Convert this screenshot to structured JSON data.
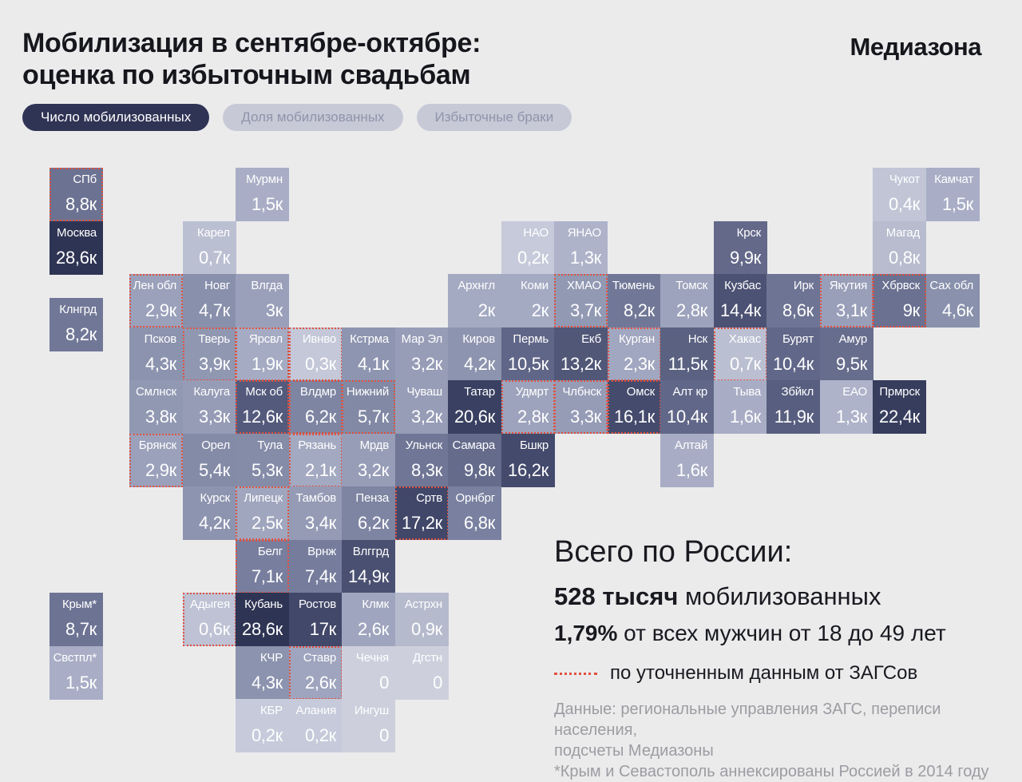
{
  "header": {
    "title_line1": "Мобилизация в сентябре-октябре:",
    "title_line2": "оценка по избыточным свадьбам",
    "logo": "Медиазона"
  },
  "tabs": [
    {
      "label": "Число мобилизованных",
      "active": true
    },
    {
      "label": "Доля мобилизованных",
      "active": false
    },
    {
      "label": "Избыточные браки",
      "active": false
    }
  ],
  "colors": {
    "background": "#ebebec",
    "accent_red_dashed": "#e1513f",
    "active_tab_bg": "#2f3354",
    "inactive_tab_bg": "#c7c9d7",
    "inactive_tab_text": "#9094a9",
    "tile_text": "#ffffff",
    "scale_min": "#cdd0dc",
    "scale_max": "#2e3453",
    "footnote_text": "#9c9ca2"
  },
  "summary": {
    "heading": "Всего по России:",
    "total_bold": "528 тысяч",
    "total_rest": " мобилизованных",
    "percent_bold": "1,79%",
    "percent_rest": " от всех мужчин от 18 до 49 лет",
    "legend_refined": "по уточненным данным от ЗАГСов",
    "footnote1": "Данные: региональные управления ЗАГС, переписи населения,",
    "footnote2": "подсчеты Медиазоны",
    "footnote3": "*Крым и Севастополь аннексированы Россией в 2014 году"
  },
  "chart_data": {
    "type": "heatmap",
    "subtype": "tile-cartogram",
    "title": "Мобилизация в сентябре-октябре: оценка по избыточным свадьбам",
    "unit_suffix": "к",
    "legend": [
      {
        "style": "red-dashed-border",
        "label": "по уточненным данным от ЗАГСов"
      }
    ],
    "totals": {
      "label": "Всего по России:",
      "mobilized": "528 тысяч мобилизованных",
      "share": "1,79% от всех мужчин от 18 до 49 лет"
    },
    "regions": [
      {
        "name": "СПб",
        "value": "8,8к",
        "k": 8.8,
        "col": -1.5,
        "row": 0,
        "color": "#6c7292",
        "refined": true
      },
      {
        "name": "Москва",
        "value": "28,6к",
        "k": 28.6,
        "col": -1.5,
        "row": 1,
        "color": "#2e3453",
        "refined": false
      },
      {
        "name": "Клнгрд",
        "value": "8,2к",
        "k": 8.2,
        "col": -1.5,
        "row": 2.45,
        "color": "#717897",
        "refined": false
      },
      {
        "name": "Крым*",
        "value": "8,7к",
        "k": 8.7,
        "col": -1.5,
        "row": 8,
        "color": "#6d7393",
        "refined": false
      },
      {
        "name": "Свстпл*",
        "value": "1,5к",
        "k": 1.5,
        "col": -1.5,
        "row": 9,
        "color": "#a9aec6",
        "refined": false
      },
      {
        "name": "Мурмн",
        "value": "1,5к",
        "k": 1.5,
        "col": 2,
        "row": 0,
        "color": "#a9aec6",
        "refined": false
      },
      {
        "name": "Чукот",
        "value": "0,4к",
        "k": 0.4,
        "col": 14,
        "row": 0,
        "color": "#c1c5d6",
        "refined": false
      },
      {
        "name": "Камчат",
        "value": "1,5к",
        "k": 1.5,
        "col": 15,
        "row": 0,
        "color": "#a9aec6",
        "refined": false
      },
      {
        "name": "Карел",
        "value": "0,7к",
        "k": 0.7,
        "col": 1,
        "row": 1,
        "color": "#bbbfd2",
        "refined": false
      },
      {
        "name": "НАО",
        "value": "0,2к",
        "k": 0.2,
        "col": 7,
        "row": 1,
        "color": "#c6cada",
        "refined": false
      },
      {
        "name": "ЯНАО",
        "value": "1,3к",
        "k": 1.3,
        "col": 8,
        "row": 1,
        "color": "#aeb3ca",
        "refined": false
      },
      {
        "name": "Крск",
        "value": "9,9к",
        "k": 9.9,
        "col": 11,
        "row": 1,
        "color": "#64698a",
        "refined": false
      },
      {
        "name": "Магад",
        "value": "0,8к",
        "k": 0.8,
        "col": 14,
        "row": 1,
        "color": "#b8bcce",
        "refined": false
      },
      {
        "name": "Лен обл",
        "value": "2,9к",
        "k": 2.9,
        "col": 0,
        "row": 2,
        "color": "#9ba1bb",
        "refined": true
      },
      {
        "name": "Новг",
        "value": "4,7к",
        "k": 4.7,
        "col": 1,
        "row": 2,
        "color": "#8890ab",
        "refined": false
      },
      {
        "name": "Влгда",
        "value": "3к",
        "k": 3,
        "col": 2,
        "row": 2,
        "color": "#9aa0ba",
        "refined": false
      },
      {
        "name": "Архнгл",
        "value": "2к",
        "k": 2,
        "col": 6,
        "row": 2,
        "color": "#a4aac2",
        "refined": false
      },
      {
        "name": "Коми",
        "value": "2к",
        "k": 2,
        "col": 7,
        "row": 2,
        "color": "#a4aac2",
        "refined": false
      },
      {
        "name": "ХМАО",
        "value": "3,7к",
        "k": 3.7,
        "col": 8,
        "row": 2,
        "color": "#9299b3",
        "refined": true
      },
      {
        "name": "Тюмень",
        "value": "8,2к",
        "k": 8.2,
        "col": 9,
        "row": 2,
        "color": "#717897",
        "refined": false
      },
      {
        "name": "Томск",
        "value": "2,8к",
        "k": 2.8,
        "col": 10,
        "row": 2,
        "color": "#9da3bc",
        "refined": false
      },
      {
        "name": "Кузбас",
        "value": "14,4к",
        "k": 14.4,
        "col": 11,
        "row": 2,
        "color": "#4c5273",
        "refined": false
      },
      {
        "name": "Ирк",
        "value": "8,6к",
        "k": 8.6,
        "col": 12,
        "row": 2,
        "color": "#6e7494",
        "refined": false
      },
      {
        "name": "Якутия",
        "value": "3,1к",
        "k": 3.1,
        "col": 13,
        "row": 2,
        "color": "#999fb9",
        "refined": true
      },
      {
        "name": "Хбрвск",
        "value": "9к",
        "k": 9,
        "col": 14,
        "row": 2,
        "color": "#6a7191",
        "refined": true
      },
      {
        "name": "Сах обл",
        "value": "4,6к",
        "k": 4.6,
        "col": 15,
        "row": 2,
        "color": "#8991ac",
        "refined": false
      },
      {
        "name": "Псков",
        "value": "4,3к",
        "k": 4.3,
        "col": 0,
        "row": 3,
        "color": "#8c93ae",
        "refined": false
      },
      {
        "name": "Тверь",
        "value": "3,9к",
        "k": 3.9,
        "col": 1,
        "row": 3,
        "color": "#9097b1",
        "refined": true
      },
      {
        "name": "Ярсвл",
        "value": "1,9к",
        "k": 1.9,
        "col": 2,
        "row": 3,
        "color": "#a5abc3",
        "refined": true
      },
      {
        "name": "Ивнво",
        "value": "0,3к",
        "k": 0.3,
        "col": 3,
        "row": 3,
        "color": "#c4c8d8",
        "refined": true
      },
      {
        "name": "Кстрма",
        "value": "4,1к",
        "k": 4.1,
        "col": 4,
        "row": 3,
        "color": "#8e95b0",
        "refined": false
      },
      {
        "name": "Мар Эл",
        "value": "3,2к",
        "k": 3.2,
        "col": 5,
        "row": 3,
        "color": "#979db7",
        "refined": false
      },
      {
        "name": "Киров",
        "value": "4,2к",
        "k": 4.2,
        "col": 6,
        "row": 3,
        "color": "#8d94af",
        "refined": false
      },
      {
        "name": "Пермь",
        "value": "10,5к",
        "k": 10.5,
        "col": 7,
        "row": 3,
        "color": "#606687",
        "refined": false
      },
      {
        "name": "Екб",
        "value": "13,2к",
        "k": 13.2,
        "col": 8,
        "row": 3,
        "color": "#515777",
        "refined": false
      },
      {
        "name": "Курган",
        "value": "2,3к",
        "k": 2.3,
        "col": 9,
        "row": 3,
        "color": "#a1a7c0",
        "refined": true
      },
      {
        "name": "Нск",
        "value": "11,5к",
        "k": 11.5,
        "col": 10,
        "row": 3,
        "color": "#5a6181",
        "refined": false
      },
      {
        "name": "Хакас",
        "value": "0,7к",
        "k": 0.7,
        "col": 11,
        "row": 3,
        "color": "#bbbfd2",
        "refined": true
      },
      {
        "name": "Бурят",
        "value": "10,4к",
        "k": 10.4,
        "col": 12,
        "row": 3,
        "color": "#616788",
        "refined": false
      },
      {
        "name": "Амур",
        "value": "9,5к",
        "k": 9.5,
        "col": 13,
        "row": 3,
        "color": "#676d8d",
        "refined": false
      },
      {
        "name": "Смлнск",
        "value": "3,8к",
        "k": 3.8,
        "col": 0,
        "row": 4,
        "color": "#9198b2",
        "refined": false
      },
      {
        "name": "Калуга",
        "value": "3,3к",
        "k": 3.3,
        "col": 1,
        "row": 4,
        "color": "#969cb6",
        "refined": false
      },
      {
        "name": "Мск об",
        "value": "12,6к",
        "k": 12.6,
        "col": 2,
        "row": 4,
        "color": "#545a7c",
        "refined": true
      },
      {
        "name": "Влдмр",
        "value": "6,2к",
        "k": 6.2,
        "col": 3,
        "row": 4,
        "color": "#7e85a2",
        "refined": true
      },
      {
        "name": "Нижний",
        "value": "5,7к",
        "k": 5.7,
        "col": 4,
        "row": 4,
        "color": "#8289a5",
        "refined": true
      },
      {
        "name": "Чуваш",
        "value": "3,2к",
        "k": 3.2,
        "col": 5,
        "row": 4,
        "color": "#979db7",
        "refined": false
      },
      {
        "name": "Татар",
        "value": "20,6к",
        "k": 20.6,
        "col": 6,
        "row": 4,
        "color": "#3a4061",
        "refined": false
      },
      {
        "name": "Удмрт",
        "value": "2,8к",
        "k": 2.8,
        "col": 7,
        "row": 4,
        "color": "#9da3bc",
        "refined": true
      },
      {
        "name": "Члбнск",
        "value": "3,3к",
        "k": 3.3,
        "col": 8,
        "row": 4,
        "color": "#969cb6",
        "refined": true
      },
      {
        "name": "Омск",
        "value": "16,1к",
        "k": 16.1,
        "col": 9,
        "row": 4,
        "color": "#454b6d",
        "refined": true
      },
      {
        "name": "Алт кр",
        "value": "10,4к",
        "k": 10.4,
        "col": 10,
        "row": 4,
        "color": "#616788",
        "refined": false
      },
      {
        "name": "Тыва",
        "value": "1,6к",
        "k": 1.6,
        "col": 11,
        "row": 4,
        "color": "#a8adc5",
        "refined": false
      },
      {
        "name": "Збйкл",
        "value": "11,9к",
        "k": 11.9,
        "col": 12,
        "row": 4,
        "color": "#585e7f",
        "refined": false
      },
      {
        "name": "ЕАО",
        "value": "1,3к",
        "k": 1.3,
        "col": 13,
        "row": 4,
        "color": "#aeb3ca",
        "refined": false
      },
      {
        "name": "Прмрск",
        "value": "22,4к",
        "k": 22.4,
        "col": 14,
        "row": 4,
        "color": "#373d5d",
        "refined": false
      },
      {
        "name": "Брянск",
        "value": "2,9к",
        "k": 2.9,
        "col": 0,
        "row": 5,
        "color": "#9ba1bb",
        "refined": true
      },
      {
        "name": "Орел",
        "value": "5,4к",
        "k": 5.4,
        "col": 1,
        "row": 5,
        "color": "#848ba7",
        "refined": false
      },
      {
        "name": "Тула",
        "value": "5,3к",
        "k": 5.3,
        "col": 2,
        "row": 5,
        "color": "#858ca8",
        "refined": false
      },
      {
        "name": "Рязань",
        "value": "2,1к",
        "k": 2.1,
        "col": 3,
        "row": 5,
        "color": "#a3a9c1",
        "refined": true
      },
      {
        "name": "Мрдв",
        "value": "3,2к",
        "k": 3.2,
        "col": 4,
        "row": 5,
        "color": "#979db7",
        "refined": false
      },
      {
        "name": "Ульнск",
        "value": "8,3к",
        "k": 8.3,
        "col": 5,
        "row": 5,
        "color": "#707796",
        "refined": false
      },
      {
        "name": "Самара",
        "value": "9,8к",
        "k": 9.8,
        "col": 6,
        "row": 5,
        "color": "#646b8b",
        "refined": false
      },
      {
        "name": "Бшкр",
        "value": "16,2к",
        "k": 16.2,
        "col": 7,
        "row": 5,
        "color": "#444a6c",
        "refined": false
      },
      {
        "name": "Алтай",
        "value": "1,6к",
        "k": 1.6,
        "col": 10,
        "row": 5,
        "color": "#a8adc5",
        "refined": false
      },
      {
        "name": "Курск",
        "value": "4,2к",
        "k": 4.2,
        "col": 1,
        "row": 6,
        "color": "#8d94af",
        "refined": false
      },
      {
        "name": "Липецк",
        "value": "2,5к",
        "k": 2.5,
        "col": 2,
        "row": 6,
        "color": "#a0a6be",
        "refined": true
      },
      {
        "name": "Тамбов",
        "value": "3,4к",
        "k": 3.4,
        "col": 3,
        "row": 6,
        "color": "#959bb5",
        "refined": false
      },
      {
        "name": "Пенза",
        "value": "6,2к",
        "k": 6.2,
        "col": 4,
        "row": 6,
        "color": "#7e85a2",
        "refined": false
      },
      {
        "name": "Сртв",
        "value": "17,2к",
        "k": 17.2,
        "col": 5,
        "row": 6,
        "color": "#414768",
        "refined": true
      },
      {
        "name": "Орнбрг",
        "value": "6,8к",
        "k": 6.8,
        "col": 6,
        "row": 6,
        "color": "#7a81a0",
        "refined": false
      },
      {
        "name": "Белг",
        "value": "7,1к",
        "k": 7.1,
        "col": 2,
        "row": 7,
        "color": "#787e9e",
        "refined": true
      },
      {
        "name": "Врнж",
        "value": "7,4к",
        "k": 7.4,
        "col": 3,
        "row": 7,
        "color": "#767c9c",
        "refined": false
      },
      {
        "name": "Влггрд",
        "value": "14,9к",
        "k": 14.9,
        "col": 4,
        "row": 7,
        "color": "#4a5071",
        "refined": false
      },
      {
        "name": "Адыгея",
        "value": "0,6к",
        "k": 0.6,
        "col": 1,
        "row": 8,
        "color": "#bec2d4",
        "refined": true
      },
      {
        "name": "Кубань",
        "value": "28,6к",
        "k": 28.6,
        "col": 2,
        "row": 8,
        "color": "#2e3453",
        "refined": false
      },
      {
        "name": "Ростов",
        "value": "17к",
        "k": 17,
        "col": 3,
        "row": 8,
        "color": "#424869",
        "refined": false
      },
      {
        "name": "Клмк",
        "value": "2,6к",
        "k": 2.6,
        "col": 4,
        "row": 8,
        "color": "#9fa5be",
        "refined": false
      },
      {
        "name": "Астрхн",
        "value": "0,9к",
        "k": 0.9,
        "col": 5,
        "row": 8,
        "color": "#b6bacd",
        "refined": false
      },
      {
        "name": "КЧР",
        "value": "4,3к",
        "k": 4.3,
        "col": 2,
        "row": 9,
        "color": "#8c93ae",
        "refined": false
      },
      {
        "name": "Ставр",
        "value": "2,6к",
        "k": 2.6,
        "col": 3,
        "row": 9,
        "color": "#9fa5be",
        "refined": true
      },
      {
        "name": "Чечня",
        "value": "0",
        "k": 0,
        "col": 4,
        "row": 9,
        "color": "#cdd0dc",
        "refined": false
      },
      {
        "name": "Дгстн",
        "value": "0",
        "k": 0,
        "col": 5,
        "row": 9,
        "color": "#cdd0dc",
        "refined": false
      },
      {
        "name": "КБР",
        "value": "0,2к",
        "k": 0.2,
        "col": 2,
        "row": 10,
        "color": "#c6cada",
        "refined": false
      },
      {
        "name": "Алания",
        "value": "0,2к",
        "k": 0.2,
        "col": 3,
        "row": 10,
        "color": "#c6cada",
        "refined": false
      },
      {
        "name": "Ингуш",
        "value": "0",
        "k": 0,
        "col": 4,
        "row": 10,
        "color": "#cdd0dc",
        "refined": false
      }
    ]
  }
}
